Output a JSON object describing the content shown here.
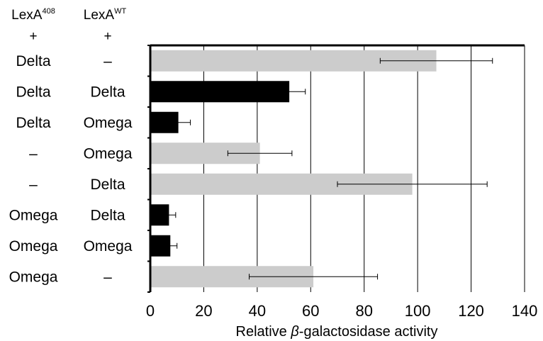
{
  "chart_data": {
    "type": "bar",
    "orientation": "horizontal",
    "column_headers": [
      {
        "name": "LexA",
        "superscript": "408",
        "sub": "+"
      },
      {
        "name": "LexA",
        "superscript": "WT",
        "sub": "+"
      }
    ],
    "rows": [
      {
        "lexa408": "Delta",
        "lexawt": "–",
        "value": 107,
        "error": 21,
        "color": "#cccccc"
      },
      {
        "lexa408": "Delta",
        "lexawt": "Delta",
        "value": 52,
        "error": 6,
        "color": "#000000"
      },
      {
        "lexa408": "Delta",
        "lexawt": "Omega",
        "value": 10.5,
        "error": 4.5,
        "color": "#000000"
      },
      {
        "lexa408": "–",
        "lexawt": "Omega",
        "value": 41,
        "error": 12,
        "color": "#cccccc"
      },
      {
        "lexa408": "–",
        "lexawt": "Delta",
        "value": 98,
        "error": 28,
        "color": "#cccccc"
      },
      {
        "lexa408": "Omega",
        "lexawt": "Delta",
        "value": 7,
        "error": 2.5,
        "color": "#000000"
      },
      {
        "lexa408": "Omega",
        "lexawt": "Omega",
        "value": 7.5,
        "error": 2.5,
        "color": "#000000"
      },
      {
        "lexa408": "Omega",
        "lexawt": "–",
        "value": 61,
        "error": 24,
        "color": "#cccccc"
      }
    ],
    "xlim": [
      0,
      140
    ],
    "xticks": [
      0,
      20,
      40,
      60,
      80,
      100,
      120,
      140
    ],
    "xlabel_prefix": "Relative ",
    "xlabel_symbol": "β",
    "xlabel_suffix": "-galactosidase activity",
    "vertical_grid": true
  }
}
